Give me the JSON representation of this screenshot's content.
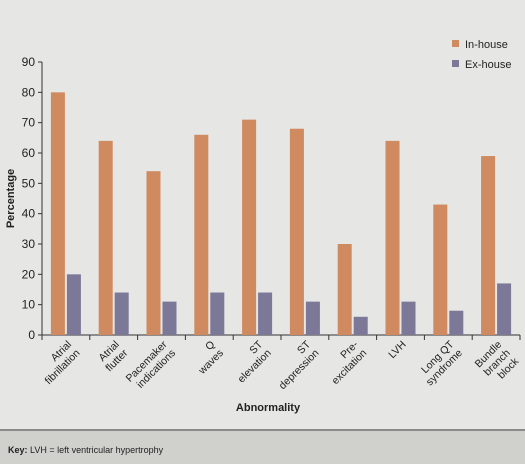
{
  "chart_data": {
    "type": "bar",
    "categories": [
      [
        "Atrial",
        "fibrillation"
      ],
      [
        "Atrial",
        "flutter"
      ],
      [
        "Pacemaker",
        "indications"
      ],
      [
        "Q",
        "waves"
      ],
      [
        "ST",
        "elevation"
      ],
      [
        "ST",
        "depression"
      ],
      [
        "Pre-",
        "excitation"
      ],
      [
        "LVH"
      ],
      [
        "Long QT",
        "syndrome"
      ],
      [
        "Bundle",
        "branch",
        "block"
      ]
    ],
    "series": [
      {
        "name": "In-house",
        "color": "#d08a5f",
        "values": [
          80,
          64,
          54,
          66,
          71,
          68,
          30,
          64,
          43,
          59
        ]
      },
      {
        "name": "Ex-house",
        "color": "#7b7898",
        "values": [
          20,
          14,
          11,
          14,
          14,
          11,
          6,
          11,
          8,
          17
        ]
      }
    ],
    "xlabel": "Abnormality",
    "ylabel": "Percentage",
    "ylim": [
      0,
      90
    ],
    "yticks": [
      0,
      10,
      20,
      30,
      40,
      50,
      60,
      70,
      80,
      90
    ],
    "legend_position": "top-right",
    "grid": false
  },
  "key": {
    "label": "Key:",
    "text": "LVH = left ventricular hypertrophy"
  }
}
